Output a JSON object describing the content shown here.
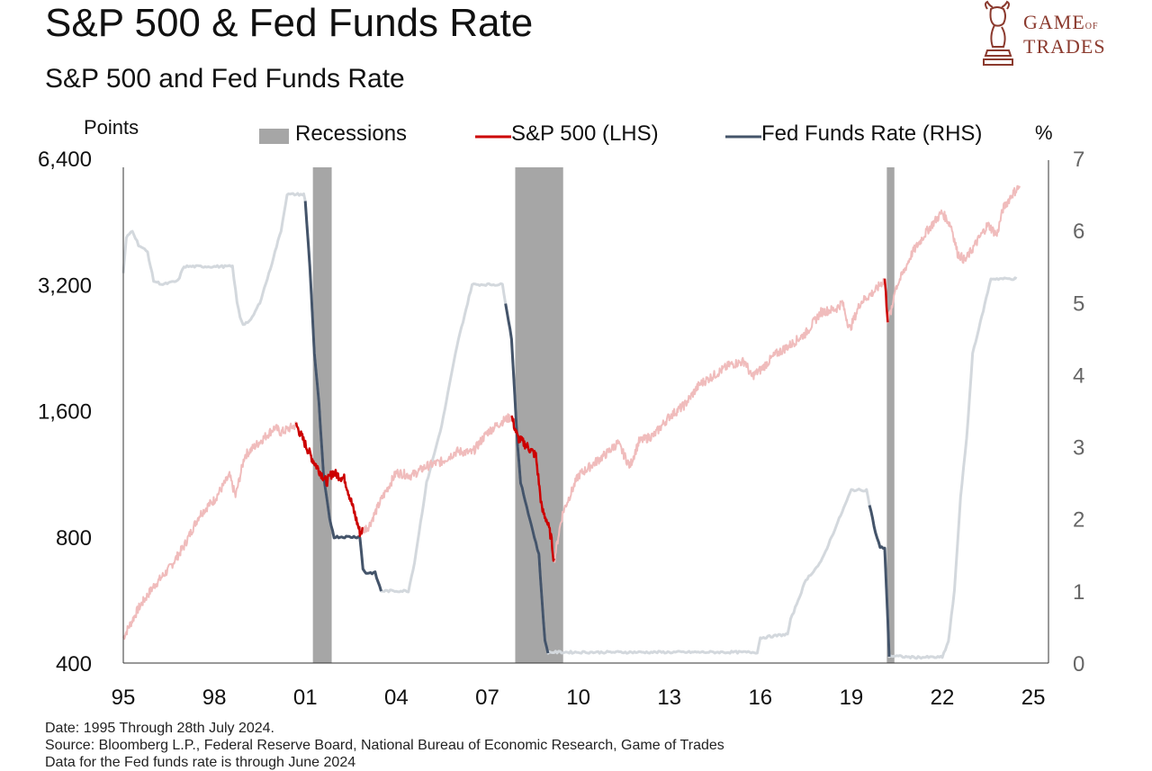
{
  "header": {
    "title": "S&P 500 & Fed Funds Rate",
    "subtitle": "S&P 500 and Fed Funds Rate"
  },
  "logo": {
    "line1": "GAME",
    "line1_small": "OF",
    "line2": "TRADES",
    "icon": "bull-knight-icon"
  },
  "footer": {
    "line1": "Date: 1995 Through 28th July 2024.",
    "line2": "Source: Bloomberg L.P., Federal Reserve Board, National Bureau of Economic Research, Game of Trades",
    "line3": "Data for the Fed funds rate is through June 2024"
  },
  "colors": {
    "sp500": "#cc0000",
    "sp500_faded": "#f0bcbc",
    "fed": "#44546a",
    "fed_faded": "#d3d8dd",
    "recession": "#a6a6a6"
  },
  "chart_data": {
    "type": "line",
    "title": "S&P 500 & Fed Funds Rate",
    "subtitle": "S&P 500 and Fed Funds Rate",
    "x_range": [
      1995,
      2025.5
    ],
    "x_ticks": [
      1995,
      1998,
      2001,
      2004,
      2007,
      2010,
      2013,
      2016,
      2019,
      2022,
      2025
    ],
    "x_tick_labels": [
      "95",
      "98",
      "01",
      "04",
      "07",
      "10",
      "13",
      "16",
      "19",
      "22",
      "25"
    ],
    "y_left": {
      "label": "Points",
      "scale": "log",
      "range": [
        400,
        6400
      ],
      "ticks": [
        400,
        800,
        1600,
        3200,
        6400
      ],
      "tick_labels": [
        "400",
        "800",
        "1,600",
        "3,200",
        "6,400"
      ]
    },
    "y_right": {
      "label": "%",
      "range": [
        0,
        7
      ],
      "ticks": [
        0,
        1,
        2,
        3,
        4,
        5,
        6,
        7
      ],
      "tick_labels": [
        "0",
        "1",
        "2",
        "3",
        "4",
        "5",
        "6",
        "7"
      ]
    },
    "legend": {
      "position": "top",
      "items": [
        "Recessions",
        "S&P 500 (LHS)",
        "Fed Funds Rate (RHS)"
      ]
    },
    "recessions": [
      {
        "start": 2001.25,
        "end": 2001.87
      },
      {
        "start": 2007.92,
        "end": 2009.5
      },
      {
        "start": 2020.17,
        "end": 2020.42
      }
    ],
    "series": [
      {
        "name": "S&P 500 (LHS)",
        "axis": "left",
        "x": [
          1995.0,
          1995.5,
          1996.0,
          1996.5,
          1997.0,
          1997.5,
          1997.8,
          1998.0,
          1998.5,
          1998.7,
          1999.0,
          1999.5,
          2000.0,
          2000.2,
          2000.7,
          2001.0,
          2001.25,
          2001.7,
          2001.9,
          2002.3,
          2002.55,
          2002.8,
          2003.1,
          2003.5,
          2004.0,
          2004.5,
          2005.0,
          2005.5,
          2006.0,
          2006.5,
          2007.0,
          2007.5,
          2007.8,
          2008.0,
          2008.3,
          2008.6,
          2008.8,
          2008.95,
          2009.1,
          2009.2,
          2009.4,
          2009.5,
          2010.0,
          2010.4,
          2010.9,
          2011.3,
          2011.7,
          2012.0,
          2012.5,
          2013.0,
          2013.5,
          2014.0,
          2014.5,
          2015.0,
          2015.5,
          2015.7,
          2016.0,
          2016.5,
          2017.0,
          2017.5,
          2018.0,
          2018.5,
          2018.7,
          2018.95,
          2019.3,
          2019.8,
          2020.1,
          2020.2,
          2020.35,
          2020.42,
          2020.7,
          2021.0,
          2021.5,
          2021.99,
          2022.3,
          2022.5,
          2022.75,
          2023.0,
          2023.5,
          2023.8,
          2024.0,
          2024.3,
          2024.55
        ],
        "y": [
          460,
          540,
          610,
          670,
          760,
          900,
          950,
          980,
          1120,
          1000,
          1250,
          1350,
          1460,
          1420,
          1480,
          1330,
          1220,
          1080,
          1140,
          1100,
          950,
          820,
          850,
          980,
          1140,
          1120,
          1180,
          1210,
          1280,
          1270,
          1420,
          1510,
          1550,
          1380,
          1320,
          1250,
          930,
          880,
          800,
          700,
          850,
          920,
          1120,
          1180,
          1260,
          1340,
          1180,
          1350,
          1400,
          1550,
          1650,
          1850,
          1950,
          2060,
          2100,
          1930,
          2000,
          2180,
          2300,
          2450,
          2750,
          2800,
          2900,
          2500,
          2900,
          3100,
          3300,
          2650,
          2800,
          3100,
          3400,
          3800,
          4300,
          4760,
          4400,
          3800,
          3650,
          3900,
          4450,
          4200,
          4850,
          5250,
          5500
        ]
      },
      {
        "name": "Fed Funds Rate (RHS)",
        "axis": "right",
        "x": [
          1995.0,
          1995.1,
          1995.3,
          1995.5,
          1995.8,
          1996.0,
          1996.3,
          1996.8,
          1997.0,
          1997.3,
          1998.0,
          1998.6,
          1998.75,
          1998.85,
          1998.95,
          1999.2,
          1999.5,
          1999.8,
          2000.0,
          2000.2,
          2000.4,
          2000.7,
          2000.95,
          2001.0,
          2001.15,
          2001.3,
          2001.45,
          2001.6,
          2001.8,
          2001.95,
          2002.3,
          2002.8,
          2002.9,
          2003.0,
          2003.3,
          2003.5,
          2004.0,
          2004.4,
          2004.6,
          2005.0,
          2005.5,
          2006.0,
          2006.5,
          2007.0,
          2007.5,
          2007.6,
          2007.8,
          2008.0,
          2008.1,
          2008.25,
          2008.4,
          2008.7,
          2008.9,
          2009.0,
          2010.0,
          2015.9,
          2016.0,
          2016.9,
          2017.0,
          2017.5,
          2018.0,
          2018.5,
          2019.0,
          2019.5,
          2019.6,
          2019.8,
          2019.95,
          2020.1,
          2020.2,
          2020.25,
          2021.0,
          2022.0,
          2022.2,
          2022.4,
          2022.6,
          2022.8,
          2023.0,
          2023.3,
          2023.6,
          2024.45
        ],
        "y": [
          5.4,
          5.9,
          6.0,
          5.8,
          5.7,
          5.3,
          5.25,
          5.3,
          5.5,
          5.5,
          5.5,
          5.5,
          5.0,
          4.8,
          4.7,
          4.75,
          5.0,
          5.4,
          5.7,
          6.0,
          6.5,
          6.5,
          6.5,
          6.4,
          5.5,
          4.3,
          3.6,
          2.6,
          2.0,
          1.75,
          1.75,
          1.75,
          1.3,
          1.25,
          1.25,
          1.0,
          1.0,
          1.0,
          1.4,
          2.5,
          3.3,
          4.4,
          5.25,
          5.25,
          5.25,
          5.0,
          4.5,
          3.0,
          2.5,
          2.25,
          2.0,
          1.5,
          0.3,
          0.15,
          0.15,
          0.15,
          0.35,
          0.4,
          0.6,
          1.15,
          1.4,
          1.9,
          2.4,
          2.4,
          2.2,
          1.8,
          1.6,
          1.6,
          0.6,
          0.1,
          0.08,
          0.08,
          0.3,
          1.0,
          2.3,
          3.1,
          4.3,
          4.8,
          5.33,
          5.33
        ]
      }
    ]
  }
}
